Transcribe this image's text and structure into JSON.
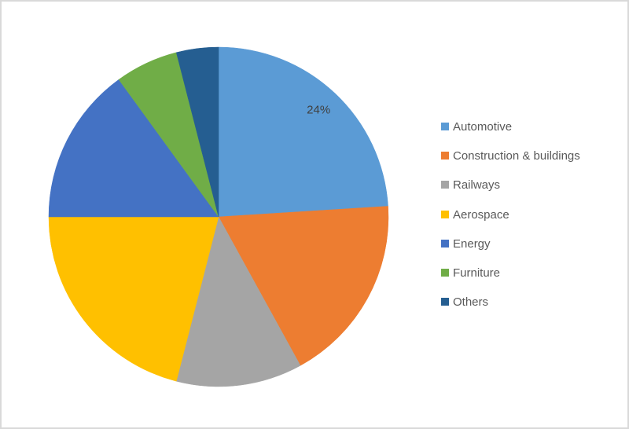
{
  "chart_data": {
    "type": "pie",
    "title": "",
    "categories": [
      "Automotive",
      "Construction & buildings",
      "Railways",
      "Aerospace",
      "Energy",
      "Furniture",
      "Others"
    ],
    "values": [
      24,
      18,
      12,
      21,
      15,
      6,
      4
    ],
    "unit": "%",
    "colors": [
      "#5B9BD5",
      "#ED7D31",
      "#A5A5A5",
      "#FFC000",
      "#4472C4",
      "#70AD47",
      "#255E91"
    ],
    "start_angle_deg": 0,
    "direction": "clockwise",
    "legend_position": "right",
    "data_labels": [
      {
        "slice_index": 0,
        "text": "24%"
      }
    ]
  },
  "style": {
    "background_color": "#FFFFFF",
    "frame_border_color": "#D9D9D9",
    "data_label_color": "#404040",
    "legend_text_color": "#595959"
  }
}
